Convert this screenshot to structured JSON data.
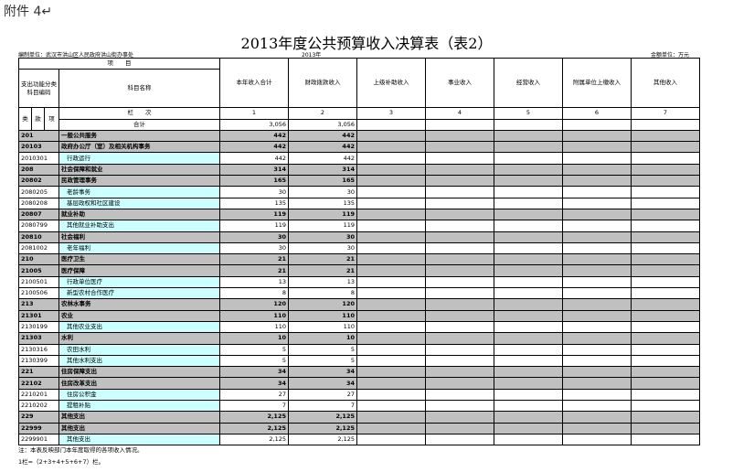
{
  "attachment": "附件 4↵",
  "title": "2013年度公共预算收入决算表（表2）",
  "meta": {
    "unit": "编制单位：武汉市洪山区人民政府洪山街办事处",
    "year": "2013年",
    "amount_unit": "金额单位：万元"
  },
  "table": {
    "item_header": "项　　目",
    "code_header": "支出功能分类科目编码",
    "name_header": "科目名称",
    "columns": [
      "本年收入合计",
      "财政拨款收入",
      "上级补助收入",
      "事业收入",
      "经营收入",
      "附属单位上缴收入",
      "其他收入"
    ],
    "code_levels": [
      "类",
      "款",
      "项"
    ],
    "column_index_label": "栏　　次",
    "column_numbers": [
      "1",
      "2",
      "3",
      "4",
      "5",
      "6",
      "7"
    ],
    "total": {
      "label": "合计",
      "values": [
        "3,056",
        "3,056"
      ]
    },
    "rows": [
      {
        "code": "201",
        "name": "一般公共服务",
        "values": [
          "442",
          "442"
        ],
        "shaded": true
      },
      {
        "code": "20103",
        "name": "政府办公厅（室）及相关机构事务",
        "values": [
          "442",
          "442"
        ],
        "shaded": true
      },
      {
        "code": "2010301",
        "name": "行政运行",
        "values": [
          "442",
          "442"
        ],
        "shaded": false
      },
      {
        "code": "208",
        "name": "社会保障和就业",
        "values": [
          "314",
          "314"
        ],
        "shaded": true
      },
      {
        "code": "20802",
        "name": "民政管理事务",
        "values": [
          "165",
          "165"
        ],
        "shaded": true
      },
      {
        "code": "2080205",
        "name": "老龄事务",
        "values": [
          "30",
          "30"
        ],
        "shaded": false
      },
      {
        "code": "2080208",
        "name": "基层政权和社区建设",
        "values": [
          "135",
          "135"
        ],
        "shaded": false
      },
      {
        "code": "20807",
        "name": "就业补助",
        "values": [
          "119",
          "119"
        ],
        "shaded": true
      },
      {
        "code": "2080799",
        "name": "其他就业补助支出",
        "values": [
          "119",
          "119"
        ],
        "shaded": false
      },
      {
        "code": "20810",
        "name": "社会福利",
        "values": [
          "30",
          "30"
        ],
        "shaded": true
      },
      {
        "code": "2081002",
        "name": "老年福利",
        "values": [
          "30",
          "30"
        ],
        "shaded": false
      },
      {
        "code": "210",
        "name": "医疗卫生",
        "values": [
          "21",
          "21"
        ],
        "shaded": true
      },
      {
        "code": "21005",
        "name": "医疗保障",
        "values": [
          "21",
          "21"
        ],
        "shaded": true
      },
      {
        "code": "2100501",
        "name": "行政单位医疗",
        "values": [
          "13",
          "13"
        ],
        "shaded": false
      },
      {
        "code": "2100506",
        "name": "新型农村合作医疗",
        "values": [
          "8",
          "8"
        ],
        "shaded": false
      },
      {
        "code": "213",
        "name": "农林水事务",
        "values": [
          "120",
          "120"
        ],
        "shaded": true
      },
      {
        "code": "21301",
        "name": "农业",
        "values": [
          "110",
          "110"
        ],
        "shaded": true
      },
      {
        "code": "2130199",
        "name": "其他农业支出",
        "values": [
          "110",
          "110"
        ],
        "shaded": false
      },
      {
        "code": "21303",
        "name": "水利",
        "values": [
          "10",
          "10"
        ],
        "shaded": true
      },
      {
        "code": "2130316",
        "name": "农田水利",
        "values": [
          "5",
          "5"
        ],
        "shaded": false
      },
      {
        "code": "2130399",
        "name": "其他水利支出",
        "values": [
          "5",
          "5"
        ],
        "shaded": false
      },
      {
        "code": "221",
        "name": "住房保障支出",
        "values": [
          "34",
          "34"
        ],
        "shaded": true
      },
      {
        "code": "22102",
        "name": "住房改革支出",
        "values": [
          "34",
          "34"
        ],
        "shaded": true
      },
      {
        "code": "2210201",
        "name": "住房公积金",
        "values": [
          "27",
          "27"
        ],
        "shaded": false
      },
      {
        "code": "2210202",
        "name": "提租补贴",
        "values": [
          "7",
          "7"
        ],
        "shaded": false
      },
      {
        "code": "229",
        "name": "其他支出",
        "values": [
          "2,125",
          "2,125"
        ],
        "shaded": true
      },
      {
        "code": "22999",
        "name": "其他支出",
        "values": [
          "2,125",
          "2,125"
        ],
        "shaded": true
      },
      {
        "code": "2299901",
        "name": "其他支出",
        "values": [
          "2,125",
          "2,125"
        ],
        "shaded": false
      }
    ]
  },
  "notes": [
    "注：本表反映部门本年度取得的各项收入情况。",
    "1栏=（2+3+4+5+6+7）栏。"
  ]
}
